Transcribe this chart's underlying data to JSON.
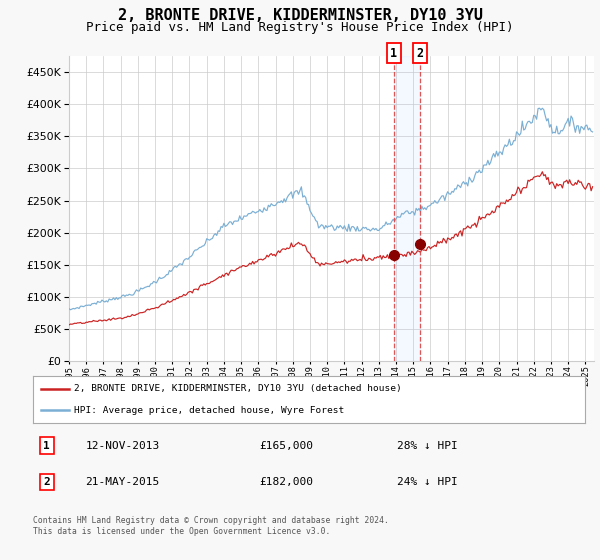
{
  "title": "2, BRONTE DRIVE, KIDDERMINSTER, DY10 3YU",
  "subtitle": "Price paid vs. HM Land Registry's House Price Index (HPI)",
  "hpi_label": "HPI: Average price, detached house, Wyre Forest",
  "property_label": "2, BRONTE DRIVE, KIDDERMINSTER, DY10 3YU (detached house)",
  "transaction1_date": "12-NOV-2013",
  "transaction1_price": 165000,
  "transaction1_pct": "28% ↓ HPI",
  "transaction2_date": "21-MAY-2015",
  "transaction2_price": 182000,
  "transaction2_pct": "24% ↓ HPI",
  "footer": "Contains HM Land Registry data © Crown copyright and database right 2024.\nThis data is licensed under the Open Government Licence v3.0.",
  "hpi_color": "#7bafd4",
  "property_color": "#cc2222",
  "marker_color": "#880000",
  "vline1_x": 2013.87,
  "vline2_x": 2015.39,
  "ylim": [
    0,
    475000
  ],
  "xlim_start": 1995.0,
  "xlim_end": 2025.5,
  "background_color": "#f8f8f8",
  "plot_bg_color": "#ffffff",
  "grid_color": "#cccccc",
  "legend_border_color": "#aaaaaa",
  "title_fontsize": 11,
  "subtitle_fontsize": 9
}
